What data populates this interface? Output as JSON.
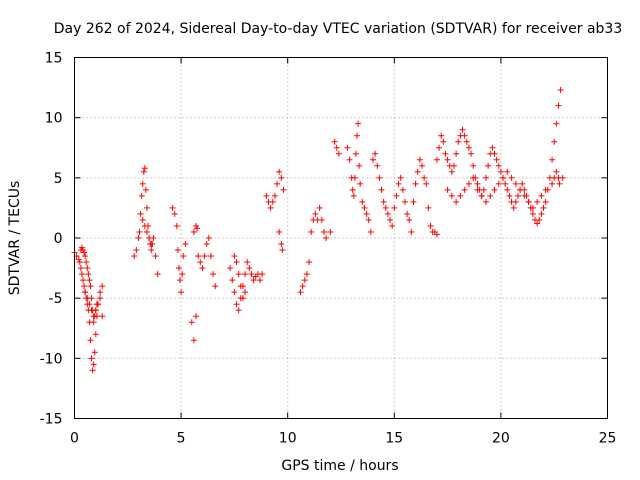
{
  "chart_data": {
    "type": "scatter",
    "title": "Day 262 of 2024, Sidereal Day-to-day VTEC variation (SDTVAR) for receiver ab33",
    "xlabel": "GPS time / hours",
    "ylabel": "SDTVAR / TECUs",
    "xlim": [
      0,
      25
    ],
    "ylim": [
      -15,
      15
    ],
    "xticks": [
      0,
      5,
      10,
      15,
      20,
      25
    ],
    "yticks": [
      -15,
      -10,
      -5,
      0,
      5,
      10,
      15
    ],
    "xtick_labels": [
      "0",
      "5",
      "10",
      "15",
      "20",
      "25"
    ],
    "ytick_labels": [
      "-15",
      "-10",
      "-5",
      "0",
      "5",
      "10",
      "15"
    ],
    "grid": true,
    "marker": "+",
    "color": "#ff0000",
    "series": [
      {
        "name": "SDTVAR",
        "x": [
          0.0,
          0.1,
          0.2,
          0.25,
          0.3,
          0.35,
          0.4,
          0.45,
          0.5,
          0.55,
          0.6,
          0.65,
          0.7,
          0.75,
          0.8,
          0.85,
          0.9,
          0.95,
          1.0,
          1.05,
          1.1,
          1.2,
          1.3,
          0.3,
          0.35,
          0.4,
          0.45,
          0.5,
          0.55,
          0.6,
          0.65,
          0.7,
          0.75,
          0.8,
          0.85,
          0.9,
          0.95,
          1.0,
          1.05,
          0.5,
          0.6,
          0.7,
          0.8,
          0.9,
          1.0,
          1.1,
          1.2,
          1.3,
          2.8,
          2.9,
          3.0,
          3.05,
          3.1,
          3.15,
          3.2,
          3.25,
          3.3,
          3.35,
          3.4,
          3.45,
          3.5,
          3.55,
          3.6,
          3.65,
          3.7,
          3.8,
          3.9,
          3.2,
          3.3,
          3.4,
          3.5,
          3.6,
          4.6,
          4.7,
          4.8,
          4.85,
          4.9,
          4.95,
          5.0,
          5.05,
          5.1,
          5.2,
          5.5,
          5.6,
          5.7,
          5.8,
          5.9,
          6.0,
          6.1,
          6.2,
          6.3,
          6.4,
          6.5,
          6.6,
          5.6,
          5.7,
          5.75,
          7.3,
          7.4,
          7.5,
          7.6,
          7.7,
          7.8,
          7.9,
          8.0,
          8.1,
          8.2,
          8.3,
          8.4,
          8.5,
          8.6,
          8.7,
          8.8,
          7.5,
          7.6,
          7.7,
          7.8,
          7.9,
          8.0,
          9.0,
          9.1,
          9.2,
          9.3,
          9.4,
          9.5,
          9.6,
          9.7,
          9.8,
          9.6,
          9.7,
          9.75,
          10.6,
          10.7,
          10.8,
          10.9,
          11.0,
          11.1,
          11.2,
          11.3,
          11.4,
          11.5,
          11.6,
          11.7,
          11.8,
          12.0,
          12.2,
          12.3,
          12.4,
          12.8,
          12.9,
          13.0,
          13.05,
          13.1,
          13.15,
          13.2,
          13.25,
          13.3,
          13.35,
          13.4,
          13.5,
          13.6,
          13.7,
          13.8,
          13.9,
          14.0,
          14.1,
          14.2,
          14.3,
          14.4,
          14.5,
          14.6,
          14.7,
          14.8,
          14.9,
          15.0,
          15.1,
          15.2,
          15.3,
          15.4,
          15.5,
          15.6,
          15.7,
          15.8,
          15.9,
          16.0,
          16.1,
          16.2,
          16.3,
          16.4,
          16.5,
          16.6,
          16.7,
          16.8,
          16.9,
          17.0,
          17.0,
          17.1,
          17.2,
          17.3,
          17.4,
          17.5,
          17.6,
          17.7,
          17.8,
          17.9,
          18.0,
          18.1,
          18.2,
          18.3,
          18.4,
          18.5,
          18.6,
          18.7,
          18.8,
          18.9,
          19.0,
          19.1,
          19.2,
          19.3,
          19.4,
          19.5,
          19.6,
          19.7,
          19.8,
          19.9,
          20.0,
          20.1,
          20.2,
          20.3,
          20.4,
          20.5,
          20.6,
          20.7,
          20.8,
          20.9,
          21.0,
          21.1,
          21.2,
          21.3,
          21.4,
          21.5,
          21.6,
          21.7,
          21.8,
          21.9,
          22.0,
          22.1,
          22.2,
          22.3,
          22.4,
          22.5,
          22.6,
          22.7,
          22.8,
          22.9,
          17.5,
          17.7,
          17.9,
          18.1,
          18.3,
          18.5,
          18.7,
          18.9,
          19.1,
          19.3,
          19.5,
          19.7,
          19.9,
          20.1,
          20.3,
          20.5,
          20.7,
          20.9,
          21.1,
          21.3,
          21.5,
          21.7,
          21.9,
          22.1,
          22.4,
          22.5,
          22.6,
          22.7,
          22.75
        ],
        "values": [
          -1.2,
          -1.5,
          -1.8,
          -2.0,
          -2.5,
          -3.0,
          -3.5,
          -4.0,
          -4.5,
          -5.0,
          -5.5,
          -6.0,
          -7.0,
          -8.5,
          -10.0,
          -11.0,
          -10.5,
          -9.5,
          -8.0,
          -6.5,
          -5.5,
          -4.5,
          -4.0,
          -1.0,
          -0.8,
          -1.0,
          -1.2,
          -1.5,
          -2.0,
          -2.5,
          -3.0,
          -3.5,
          -4.0,
          -5.0,
          -6.0,
          -7.0,
          -6.5,
          -6.0,
          -5.5,
          -4.5,
          -5.0,
          -5.5,
          -6.0,
          -6.5,
          -6.0,
          -5.5,
          -5.0,
          -6.5,
          -1.5,
          -1.0,
          0.0,
          0.5,
          2.0,
          3.5,
          4.5,
          5.5,
          5.8,
          4.0,
          2.5,
          1.0,
          0.0,
          -0.5,
          -1.0,
          -0.5,
          0.0,
          -1.5,
          -3.0,
          1.5,
          1.0,
          0.5,
          0.0,
          -0.5,
          2.5,
          2.0,
          1.0,
          -1.0,
          -2.5,
          -3.5,
          -4.5,
          -3.0,
          -1.5,
          -0.5,
          -7.0,
          -8.5,
          -6.5,
          -1.5,
          -2.0,
          -2.5,
          -1.5,
          -0.5,
          0.0,
          -1.5,
          -3.0,
          -4.0,
          0.5,
          1.0,
          0.8,
          -2.5,
          -3.5,
          -4.5,
          -5.5,
          -6.0,
          -5.0,
          -4.0,
          -3.0,
          -2.0,
          -2.5,
          -3.0,
          -3.5,
          -3.2,
          -3.0,
          -3.5,
          -3.0,
          -1.5,
          -2.0,
          -3.0,
          -4.0,
          -5.0,
          -4.5,
          3.5,
          3.0,
          2.5,
          3.0,
          3.5,
          4.5,
          5.5,
          5.0,
          4.0,
          0.5,
          -0.5,
          -1.0,
          -4.5,
          -4.0,
          -3.5,
          -3.0,
          -2.0,
          0.5,
          1.5,
          2.0,
          1.5,
          2.5,
          1.5,
          0.5,
          0.0,
          0.5,
          8.0,
          7.5,
          7.0,
          7.5,
          6.5,
          5.0,
          4.0,
          3.5,
          5.0,
          7.0,
          8.5,
          9.5,
          6.0,
          4.5,
          3.0,
          2.5,
          2.0,
          1.5,
          0.5,
          6.5,
          7.0,
          6.0,
          5.0,
          4.0,
          3.0,
          2.5,
          2.0,
          1.5,
          1.0,
          2.5,
          3.5,
          4.5,
          5.0,
          4.0,
          3.0,
          2.0,
          1.5,
          0.5,
          3.0,
          4.5,
          5.5,
          6.5,
          6.0,
          5.0,
          4.5,
          2.5,
          1.0,
          0.5,
          0.5,
          0.3,
          6.5,
          7.5,
          8.5,
          8.0,
          7.0,
          6.5,
          6.0,
          5.5,
          6.0,
          7.0,
          8.0,
          8.5,
          9.0,
          8.5,
          8.0,
          7.5,
          7.0,
          6.0,
          5.0,
          4.5,
          4.0,
          3.5,
          4.0,
          5.0,
          6.0,
          7.0,
          7.5,
          7.0,
          6.5,
          6.0,
          5.5,
          5.0,
          4.5,
          4.0,
          3.5,
          3.0,
          2.5,
          3.0,
          3.5,
          4.0,
          4.5,
          4.0,
          3.5,
          3.0,
          2.5,
          2.0,
          1.5,
          1.2,
          1.5,
          2.0,
          2.5,
          3.0,
          4.0,
          5.0,
          6.5,
          8.0,
          9.5,
          11.0,
          12.3,
          5.0,
          4.0,
          3.5,
          3.0,
          3.5,
          4.0,
          4.5,
          5.0,
          4.0,
          3.5,
          3.0,
          3.5,
          4.0,
          4.5,
          5.0,
          5.5,
          5.0,
          4.5,
          4.0,
          3.5,
          3.0,
          2.5,
          3.0,
          3.5,
          4.0,
          4.5,
          5.0,
          5.5,
          5.0,
          4.5
        ]
      }
    ]
  }
}
